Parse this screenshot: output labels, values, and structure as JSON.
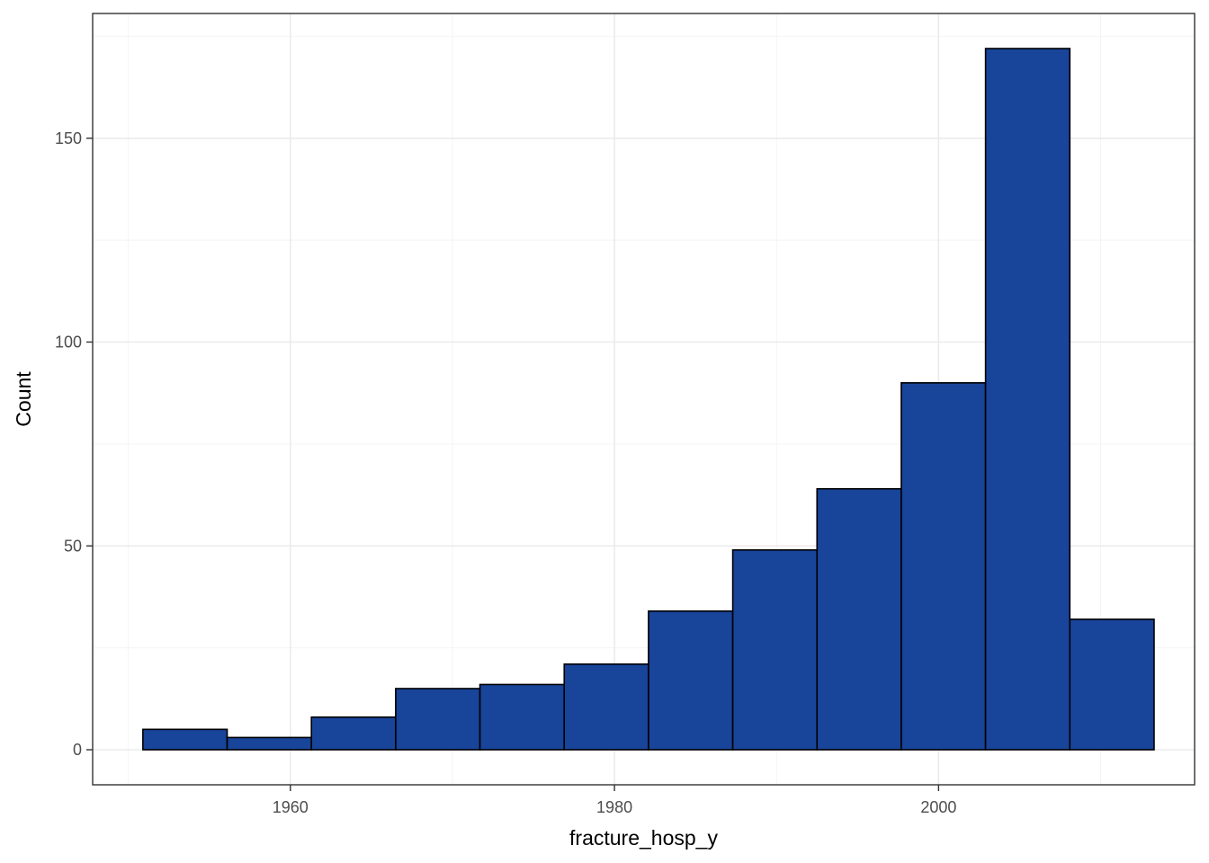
{
  "chart_data": {
    "type": "histogram",
    "xlabel": "fracture_hosp_y",
    "ylabel": "Count",
    "xlim": [
      1947.8,
      2015.8
    ],
    "ylim": [
      -8.6,
      180.6
    ],
    "x_ticks": [
      1960,
      1980,
      2000
    ],
    "y_ticks": [
      0,
      50,
      100,
      150
    ],
    "grid": true,
    "bin_width": 5.2,
    "bins": [
      {
        "x0": 1950.9,
        "x1": 1956.1,
        "count": 5
      },
      {
        "x0": 1956.1,
        "x1": 1961.3,
        "count": 3
      },
      {
        "x0": 1961.3,
        "x1": 1966.5,
        "count": 8
      },
      {
        "x0": 1966.5,
        "x1": 1971.7,
        "count": 15
      },
      {
        "x0": 1971.7,
        "x1": 1976.9,
        "count": 16
      },
      {
        "x0": 1976.9,
        "x1": 1982.1,
        "count": 21
      },
      {
        "x0": 1982.1,
        "x1": 1987.3,
        "count": 34
      },
      {
        "x0": 1987.3,
        "x1": 1992.5,
        "count": 49
      },
      {
        "x0": 1992.5,
        "x1": 1997.7,
        "count": 64
      },
      {
        "x0": 1997.7,
        "x1": 2002.9,
        "count": 90
      },
      {
        "x0": 2002.9,
        "x1": 2008.1,
        "count": 172
      },
      {
        "x0": 2008.1,
        "x1": 2013.3,
        "count": 32
      }
    ],
    "colors": {
      "bar_fill": "#18449A",
      "bar_stroke": "#000000",
      "grid_major": "#EBEBEB",
      "grid_minor": "#F4F4F4",
      "panel_border": "#333333",
      "tick_label": "#4D4D4D"
    }
  }
}
